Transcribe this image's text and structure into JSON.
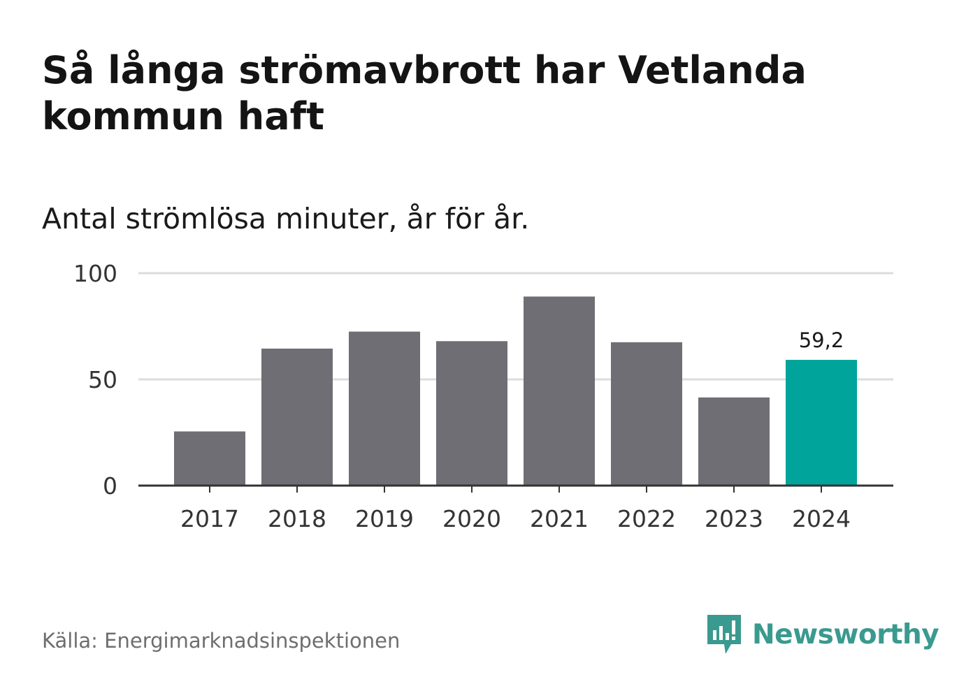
{
  "title": "Så långa strömavbrott har Vetlanda kommun haft",
  "subtitle": "Antal strömlösa minuter, år för år.",
  "source": "Källa: Energimarknadsinspektionen",
  "brand": "Newsworthy",
  "colors": {
    "bar": "#6f6e74",
    "highlight": "#00a49a",
    "grid": "#dcdcdc",
    "axis": "#333333",
    "brand": "#3a9a8f"
  },
  "chart_data": {
    "type": "bar",
    "title": "Så långa strömavbrott har Vetlanda kommun haft",
    "subtitle": "Antal strömlösa minuter, år för år.",
    "xlabel": "",
    "ylabel": "",
    "categories": [
      "2017",
      "2018",
      "2019",
      "2020",
      "2021",
      "2022",
      "2023",
      "2024"
    ],
    "values": [
      25.5,
      64.5,
      72.5,
      68,
      89,
      67.5,
      41.5,
      59.2
    ],
    "ylim": [
      0,
      100
    ],
    "yticks": [
      "0",
      "50",
      "100"
    ],
    "highlight_index": 7,
    "data_labels": [
      {
        "index": 7,
        "text": "59,2"
      }
    ],
    "grid": true
  }
}
